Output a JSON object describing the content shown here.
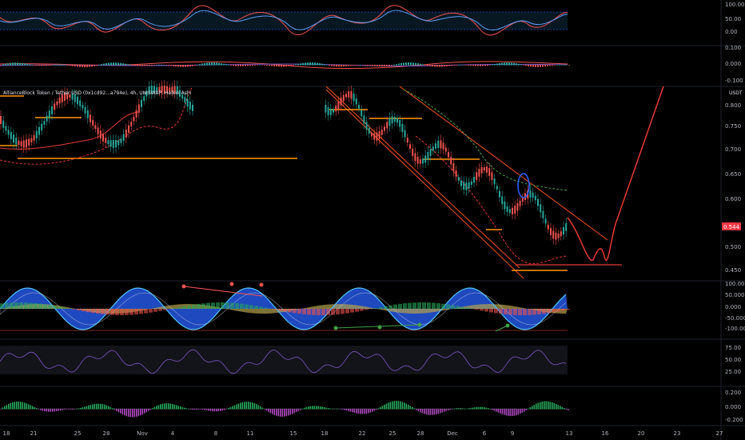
{
  "chart_header": {
    "symbol_title": "AllianceBlock Token / Tether USD (0x1cd92...a794e), 4h, UNISWAP, Heikin Ashi",
    "currency_label": "USDT"
  },
  "price_badge": {
    "value": "0.544",
    "color": "#f23645"
  },
  "colors": {
    "bull": "#26a69a",
    "bear": "#ef5350",
    "support": "#ff9800",
    "channel": "#f4511e",
    "projection": "#e53935",
    "ema_green": "#43a047",
    "rsi_line": "#7e57c2",
    "wt_blue": "#2962ff",
    "wt_cyan": "#4fc3f7"
  },
  "x_axis": {
    "labels": [
      "18",
      "21",
      "25",
      "28",
      "Nov",
      "4",
      "8",
      "11",
      "15",
      "18",
      "22",
      "25",
      "28",
      "Dec",
      "6",
      "9",
      "13",
      "16",
      "20",
      "23",
      "27"
    ]
  },
  "panels": {
    "stoch_rsi": {
      "ticks": [
        "100.00",
        "50.00",
        "0.00"
      ]
    },
    "macd_top": {
      "ticks": [
        "0.100",
        "0.000",
        "-0.100"
      ]
    },
    "price": {
      "ticks": [
        "0.800",
        "0.750",
        "0.700",
        "0.650",
        "0.600",
        "0.500",
        "0.450"
      ]
    },
    "wavetrend": {
      "ticks": [
        "100.000",
        "50.000",
        "0.000",
        "-50.000",
        "-100.000"
      ]
    },
    "rsi": {
      "ticks": [
        "75.00",
        "50.00",
        "25.00"
      ]
    },
    "macd_bottom": {
      "ticks": [
        "0.200",
        "0.000",
        "-0.200"
      ]
    }
  },
  "chart_data": {
    "type": "line",
    "title": "AllianceBlock Token / Tether USD (0x1cd92...a794e), 4h, UNISWAP, Heikin Ashi",
    "xlabel": "",
    "ylabel": "USDT",
    "ylim": [
      0.44,
      0.84
    ],
    "x": [
      "18",
      "21",
      "25",
      "28",
      "Nov",
      "4",
      "8",
      "11",
      "15",
      "18",
      "22",
      "25",
      "28",
      "Dec",
      "6",
      "9",
      "13",
      "16",
      "20",
      "23",
      "27"
    ],
    "series": [
      {
        "values": [
          0.72,
          0.725,
          0.755,
          0.74,
          0.8,
          0.7,
          0.8,
          null,
          null,
          null,
          0.8,
          0.775,
          0.745,
          0.71,
          0.62,
          0.6,
          0.568,
          null,
          null,
          null,
          null
        ]
      }
    ],
    "current_price": 0.544,
    "support_levels": [
      0.69,
      0.47,
      0.46
    ],
    "legend": "none",
    "grid": false
  }
}
